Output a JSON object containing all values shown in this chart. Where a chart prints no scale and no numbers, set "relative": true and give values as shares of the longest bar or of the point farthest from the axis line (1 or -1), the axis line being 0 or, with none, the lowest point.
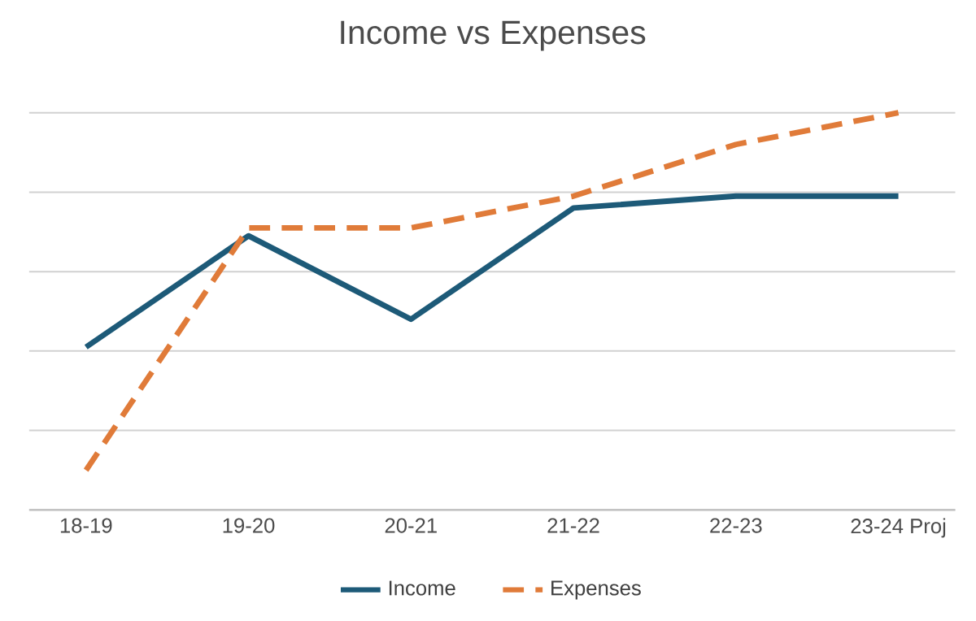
{
  "chart_data": {
    "type": "line",
    "title": "Income vs Expenses",
    "relative": true,
    "grid": "y",
    "legend": "bottom",
    "marker": "none",
    "categories": [
      "18-19",
      "19-20",
      "20-21",
      "21-22",
      "22-23",
      "23-24 Proj"
    ],
    "series": [
      {
        "name": "Income",
        "color": "#1d5a78",
        "line_style": "solid",
        "values": [
          0.41,
          0.69,
          0.48,
          0.76,
          0.79,
          0.79
        ]
      },
      {
        "name": "Expenses",
        "color": "#e07b39",
        "line_style": "dashed",
        "values": [
          0.1,
          0.71,
          0.71,
          0.79,
          0.92,
          1.0
        ]
      }
    ]
  }
}
